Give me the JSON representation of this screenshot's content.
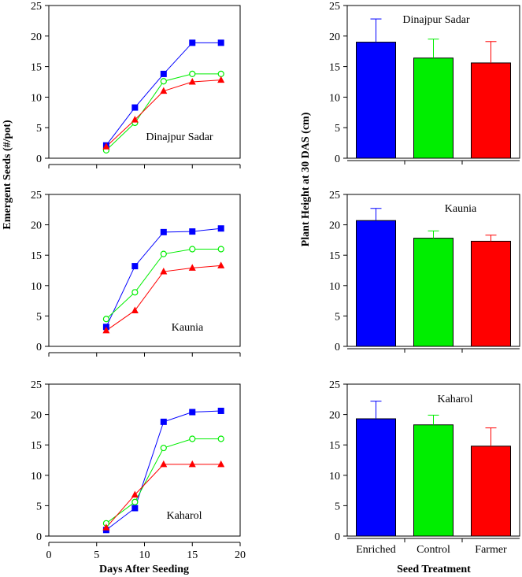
{
  "left_ylabel": "Emergent Seeds (#/pot)",
  "left_xlabel": "Days After Seeding",
  "right_ylabel": "Plant Height at 30 DAS (cm)",
  "right_xlabel": "Seed Treatment",
  "colors": {
    "enriched": "#0000ff",
    "control": "#00ee00",
    "farmer": "#ff0000"
  },
  "chart_data": [
    {
      "type": "line",
      "panel": "left-1",
      "annotation": "Dinajpur Sadar",
      "x": [
        6,
        9,
        12,
        15,
        18
      ],
      "xticks": [
        0,
        5,
        10,
        15,
        20
      ],
      "xlim": [
        0,
        20
      ],
      "ylim": [
        0,
        25
      ],
      "yticks": [
        0,
        5,
        10,
        15,
        20,
        25
      ],
      "series": [
        {
          "key": "enriched",
          "marker": "square",
          "values": [
            2.1,
            8.3,
            13.8,
            18.9,
            18.9
          ]
        },
        {
          "key": "control",
          "marker": "circle",
          "values": [
            1.3,
            5.8,
            12.6,
            13.8,
            13.8
          ]
        },
        {
          "key": "farmer",
          "marker": "triangle",
          "values": [
            1.9,
            6.3,
            11.0,
            12.5,
            12.8
          ]
        }
      ]
    },
    {
      "type": "line",
      "panel": "left-2",
      "annotation": "Kaunia",
      "x": [
        6,
        9,
        12,
        15,
        18
      ],
      "xticks": [
        0,
        5,
        10,
        15,
        20
      ],
      "xlim": [
        0,
        20
      ],
      "ylim": [
        0,
        25
      ],
      "yticks": [
        0,
        5,
        10,
        15,
        20,
        25
      ],
      "series": [
        {
          "key": "enriched",
          "marker": "square",
          "values": [
            3.2,
            13.2,
            18.8,
            18.9,
            19.4
          ]
        },
        {
          "key": "control",
          "marker": "circle",
          "values": [
            4.5,
            8.9,
            15.2,
            16.0,
            16.0
          ]
        },
        {
          "key": "farmer",
          "marker": "triangle",
          "values": [
            2.6,
            5.9,
            12.3,
            12.9,
            13.3
          ]
        }
      ]
    },
    {
      "type": "line",
      "panel": "left-3",
      "annotation": "Kaharol",
      "x": [
        6,
        9,
        12,
        15,
        18
      ],
      "xticks": [
        0,
        5,
        10,
        15,
        20
      ],
      "xlim": [
        0,
        20
      ],
      "ylim": [
        0,
        25
      ],
      "yticks": [
        0,
        5,
        10,
        15,
        20,
        25
      ],
      "series": [
        {
          "key": "enriched",
          "marker": "square",
          "values": [
            1.0,
            4.6,
            18.8,
            20.4,
            20.6
          ]
        },
        {
          "key": "control",
          "marker": "circle",
          "values": [
            2.1,
            5.6,
            14.5,
            16.0,
            16.0
          ]
        },
        {
          "key": "farmer",
          "marker": "triangle",
          "values": [
            1.4,
            6.8,
            11.8,
            11.8,
            11.8
          ]
        }
      ]
    },
    {
      "type": "bar",
      "panel": "right-1",
      "annotation": "Dinajpur Sadar",
      "categories": [
        "Enriched",
        "Control",
        "Farmer"
      ],
      "keys": [
        "enriched",
        "control",
        "farmer"
      ],
      "values": [
        19.0,
        16.4,
        15.6
      ],
      "errors": [
        3.8,
        3.1,
        3.5
      ],
      "ylim": [
        0,
        25
      ],
      "yticks": [
        0,
        5,
        10,
        15,
        20,
        25
      ],
      "show_category_labels": false
    },
    {
      "type": "bar",
      "panel": "right-2",
      "annotation": "Kaunia",
      "categories": [
        "Enriched",
        "Control",
        "Farmer"
      ],
      "keys": [
        "enriched",
        "control",
        "farmer"
      ],
      "values": [
        20.7,
        17.8,
        17.3
      ],
      "errors": [
        2.0,
        1.2,
        1.0
      ],
      "ylim": [
        0,
        25
      ],
      "yticks": [
        0,
        5,
        10,
        15,
        20,
        25
      ],
      "show_category_labels": false
    },
    {
      "type": "bar",
      "panel": "right-3",
      "annotation": "Kaharol",
      "categories": [
        "Enriched",
        "Control",
        "Farmer"
      ],
      "keys": [
        "enriched",
        "control",
        "farmer"
      ],
      "values": [
        19.3,
        18.3,
        14.8
      ],
      "errors": [
        2.9,
        1.6,
        3.0
      ],
      "ylim": [
        0,
        25
      ],
      "yticks": [
        0,
        5,
        10,
        15,
        20,
        25
      ],
      "show_category_labels": true
    }
  ]
}
